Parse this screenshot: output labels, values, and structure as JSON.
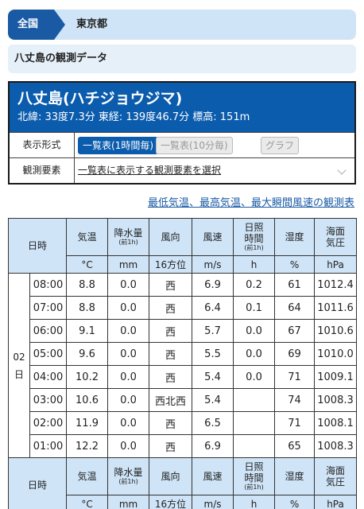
{
  "breadcrumb": {
    "home": "全国",
    "current": "東京都"
  },
  "page_title": "八丈島の観測データ",
  "station": {
    "name": "八丈島(ハチジョウジマ)",
    "coords": "北緯: 33度7.3分 東経: 139度46.7分 標高: 151m",
    "display_label": "表示形式",
    "btn_hourly": "一覧表(1時間毎)",
    "btn_10min": "一覧表(10分毎)",
    "btn_graph": "グラフ",
    "elements_label": "観測要素",
    "elements_select": "一覧表に表示する観測要素を選択"
  },
  "extreme_link": "最低気温、最高気温、最大瞬間風速の観測表",
  "table": {
    "headers": {
      "datetime": "日時",
      "temp": "気温",
      "precip": "降水量",
      "precip_sub": "(前1h)",
      "wind_dir": "風向",
      "wind_speed": "風速",
      "sunshine_1": "日照",
      "sunshine_2": "時間",
      "sunshine_sub": "(前1h)",
      "humidity": "湿度",
      "pressure_1": "海面",
      "pressure_2": "気圧"
    },
    "units": {
      "temp": "°C",
      "precip": "mm",
      "wind_dir": "16方位",
      "wind_speed": "m/s",
      "sunshine": "h",
      "humidity": "%",
      "pressure": "hPa"
    },
    "day_num": "02",
    "day_unit": "日",
    "rows": [
      {
        "time": "08:00",
        "temp": "8.8",
        "precip": "0.0",
        "dir": "西",
        "speed": "6.9",
        "sun": "0.2",
        "hum": "61",
        "pres": "1012.4"
      },
      {
        "time": "07:00",
        "temp": "8.8",
        "precip": "0.0",
        "dir": "西",
        "speed": "6.4",
        "sun": "0.1",
        "hum": "64",
        "pres": "1011.6"
      },
      {
        "time": "06:00",
        "temp": "9.1",
        "precip": "0.0",
        "dir": "西",
        "speed": "5.7",
        "sun": "0.0",
        "hum": "67",
        "pres": "1010.6"
      },
      {
        "time": "05:00",
        "temp": "9.6",
        "precip": "0.0",
        "dir": "西",
        "speed": "5.5",
        "sun": "0.0",
        "hum": "69",
        "pres": "1010.0"
      },
      {
        "time": "04:00",
        "temp": "10.2",
        "precip": "0.0",
        "dir": "西",
        "speed": "5.4",
        "sun": "0.0",
        "hum": "71",
        "pres": "1009.1"
      },
      {
        "time": "03:00",
        "temp": "10.6",
        "precip": "0.0",
        "dir": "西北西",
        "speed": "5.4",
        "sun": "",
        "hum": "74",
        "pres": "1008.3"
      },
      {
        "time": "02:00",
        "temp": "11.9",
        "precip": "0.0",
        "dir": "西",
        "speed": "6.5",
        "sun": "",
        "hum": "71",
        "pres": "1008.1"
      },
      {
        "time": "01:00",
        "temp": "12.2",
        "precip": "0.0",
        "dir": "西",
        "speed": "6.9",
        "sun": "",
        "hum": "65",
        "pres": "1008.3"
      }
    ]
  }
}
